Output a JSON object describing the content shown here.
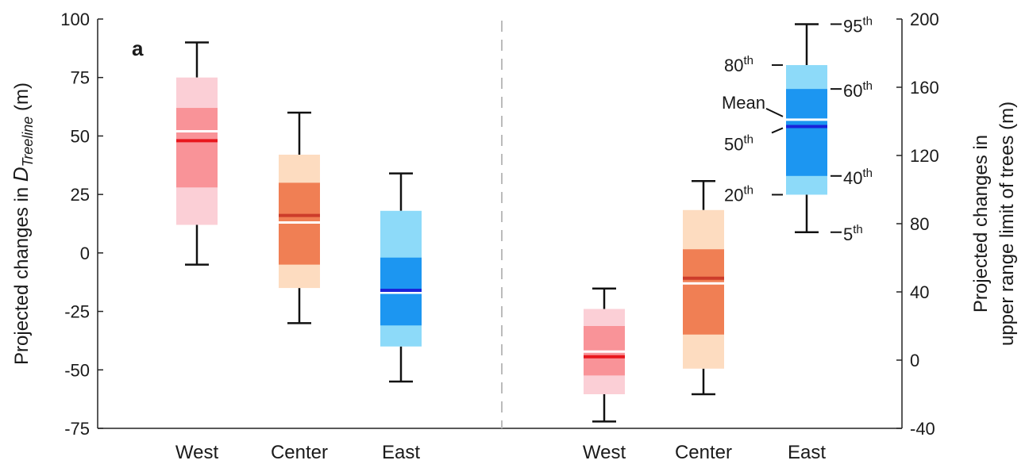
{
  "chart_data": {
    "type": "box",
    "panel_label": "a",
    "left_panel": {
      "ylabel_prefix": "Projected changes in ",
      "ylabel_symbol": "D",
      "ylabel_subscript": "Treeline",
      "ylabel_suffix": " (m)",
      "ylim": [
        -75,
        100
      ],
      "yticks": [
        "100",
        "75",
        "50",
        "25",
        "0",
        "-25",
        "-50",
        "-75"
      ],
      "categories": [
        "West",
        "Center",
        "East"
      ],
      "boxes": [
        {
          "category": "West",
          "p5": -5,
          "p20": 12,
          "p40": 28,
          "p50": 48,
          "mean": 52,
          "p60": 62,
          "p80": 75,
          "p95": 90
        },
        {
          "category": "Center",
          "p5": -30,
          "p20": -15,
          "p40": -5,
          "p50": 16,
          "mean": 13,
          "p60": 30,
          "p80": 42,
          "p95": 60
        },
        {
          "category": "East",
          "p5": -55,
          "p20": -40,
          "p40": -31,
          "p50": -16,
          "mean": -17,
          "p60": -2,
          "p80": 18,
          "p95": 34
        }
      ]
    },
    "right_panel": {
      "ylabel_line1": "Projected changes in",
      "ylabel_line2": "upper range limit of trees (m)",
      "ylim": [
        -40,
        200
      ],
      "yticks": [
        "200",
        "160",
        "120",
        "80",
        "40",
        "0",
        "-40"
      ],
      "categories": [
        "West",
        "Center",
        "East"
      ],
      "boxes": [
        {
          "category": "West",
          "p5": -36,
          "p20": -20,
          "p40": -9,
          "p50": 2,
          "mean": 5,
          "p60": 20,
          "p80": 30,
          "p95": 42
        },
        {
          "category": "Center",
          "p5": -20,
          "p20": -5,
          "p40": 15,
          "p50": 48,
          "mean": 45,
          "p60": 65,
          "p80": 88,
          "p95": 105
        },
        {
          "category": "East",
          "p5": 75,
          "p20": 97,
          "p40": 108,
          "p50": 137,
          "mean": 141,
          "p60": 159,
          "p80": 173,
          "p95": 197
        }
      ]
    },
    "legend": {
      "p95": {
        "num": "95",
        "sup": "th"
      },
      "p80": {
        "num": "80",
        "sup": "th"
      },
      "p60": {
        "num": "60",
        "sup": "th"
      },
      "mean": "Mean",
      "p50": {
        "num": "50",
        "sup": "th"
      },
      "p40": {
        "num": "40",
        "sup": "th"
      },
      "p20": {
        "num": "20",
        "sup": "th"
      },
      "p5": {
        "num": "5",
        "sup": "th"
      }
    },
    "colors": {
      "West": {
        "outer": "#fbcfd6",
        "inner": "#f99398",
        "median": "#e8171d",
        "mean": "#ffffff"
      },
      "Center": {
        "outer": "#fddcc0",
        "inner": "#f07f54",
        "median": "#cc3c2a",
        "mean": "#ffffff"
      },
      "East": {
        "outer": "#8ddaf9",
        "inner": "#1c96f1",
        "median": "#1a23d9",
        "mean": "#ffffff"
      }
    },
    "grid": false,
    "divider": "dashed vertical line between panels"
  }
}
